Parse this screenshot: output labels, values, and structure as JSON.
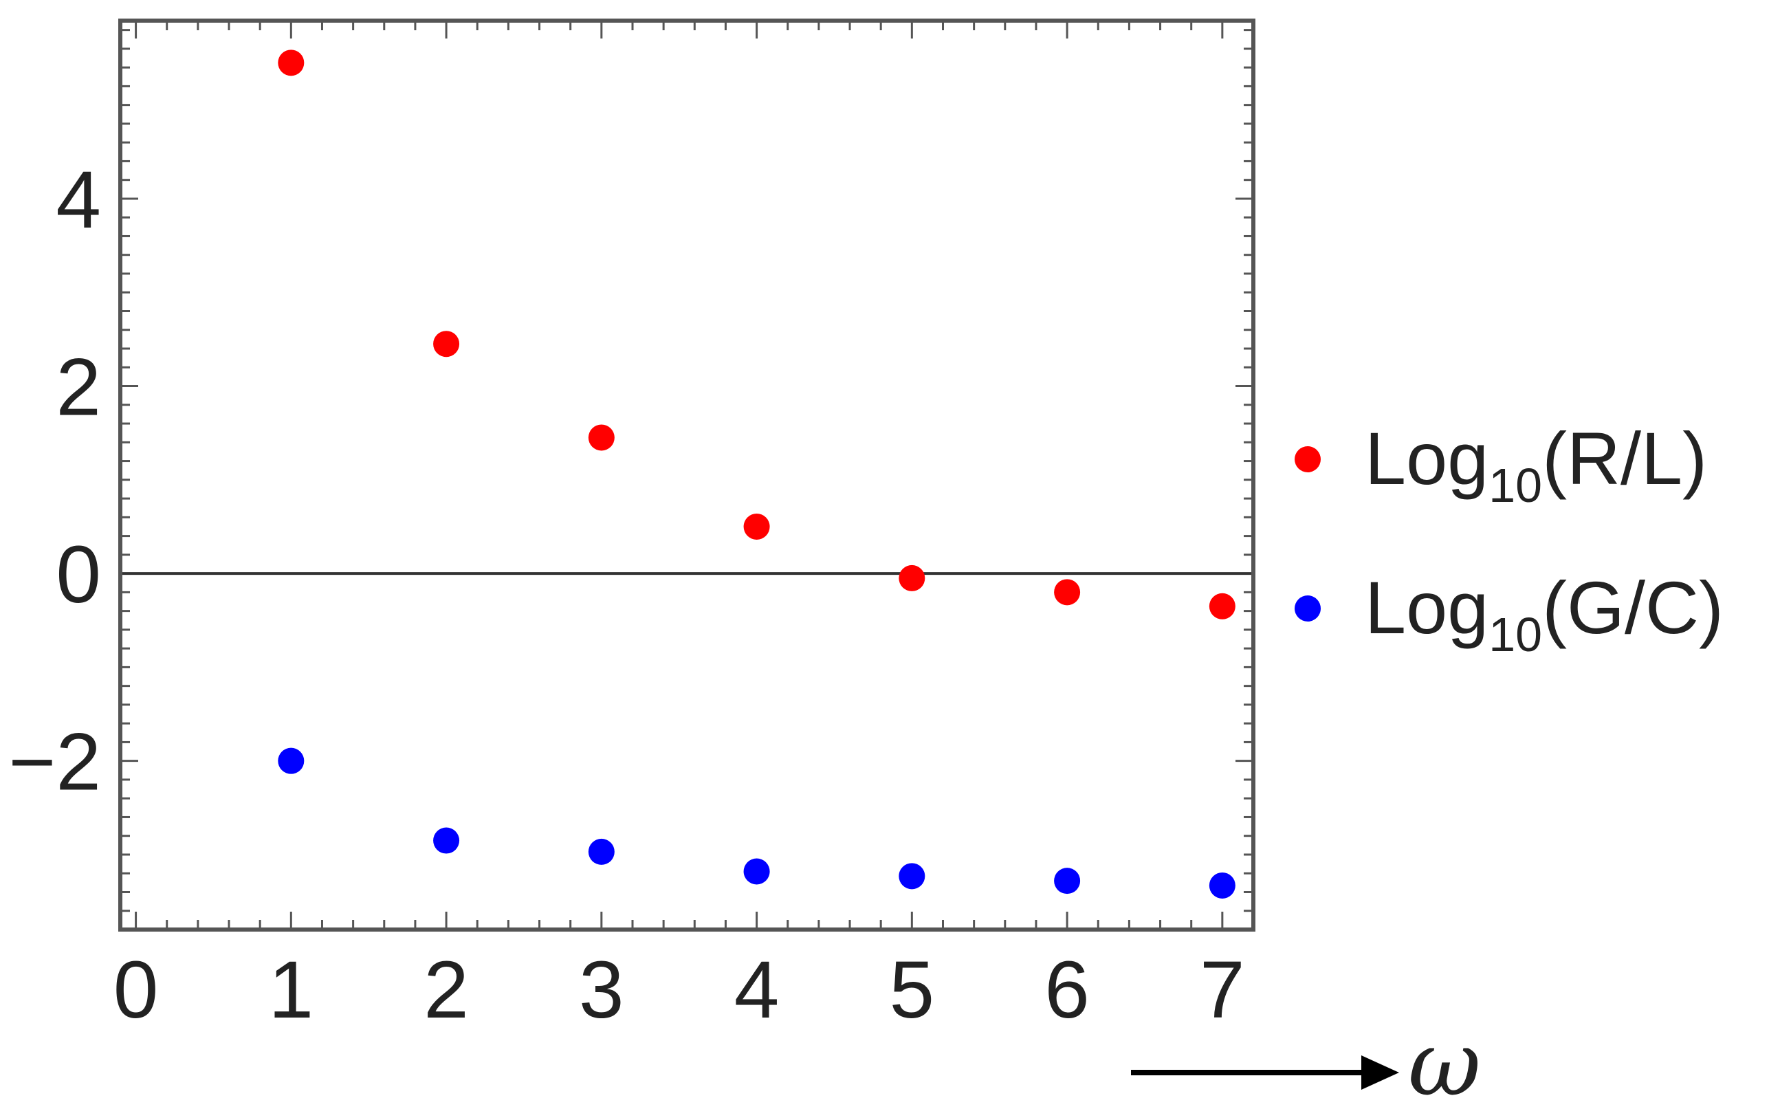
{
  "chart_data": {
    "type": "scatter",
    "title": "",
    "xlabel": "ω",
    "ylabel": "",
    "xlim": [
      -0.1,
      7.2
    ],
    "ylim": [
      -3.8,
      5.9
    ],
    "x_ticks": [
      "0",
      "1",
      "2",
      "3",
      "4",
      "5",
      "6",
      "7"
    ],
    "y_ticks": [
      "-2",
      "0",
      "2",
      "4"
    ],
    "zero_line": true,
    "grid": false,
    "legend_position": "right",
    "series": [
      {
        "legend_base": "Log",
        "legend_sub": "10",
        "legend_arg": "(R/L)",
        "color": "#ff0000",
        "x": [
          1,
          2,
          3,
          4,
          5,
          6,
          7
        ],
        "y": [
          5.45,
          2.45,
          1.45,
          0.5,
          -0.05,
          -0.2,
          -0.35
        ]
      },
      {
        "legend_base": "Log",
        "legend_sub": "10",
        "legend_arg": "(G/C)",
        "color": "#0000ff",
        "x": [
          1,
          2,
          3,
          4,
          5,
          6,
          7
        ],
        "y": [
          -2.0,
          -2.85,
          -2.97,
          -3.18,
          -3.23,
          -3.28,
          -3.33
        ]
      }
    ]
  }
}
